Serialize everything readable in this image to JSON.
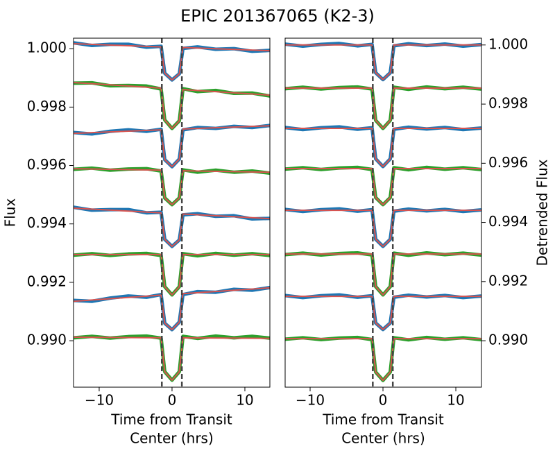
{
  "title": "EPIC 201367065 (K2-3)",
  "chart_data": [
    {
      "type": "line",
      "ylabel": "Flux",
      "xlabel": [
        "Time from Transit",
        "Center (hrs)"
      ],
      "yaxis_side": "left",
      "xlim": [
        -13.52,
        13.43
      ],
      "ylim": [
        0.98841,
        1.00036
      ],
      "xticks": [
        {
          "value": -10,
          "label": "−10"
        },
        0,
        10
      ],
      "yticks": [
        {
          "value": 0.99,
          "label": "0.990"
        },
        0.992,
        0.994,
        0.996,
        0.998,
        {
          "value": 1.0,
          "label": "1.000"
        }
      ],
      "vlines": [
        -1.4,
        1.35
      ],
      "vline_color": "#444444",
      "x": [
        -13.5,
        -11,
        -8.5,
        -6,
        -3.5,
        -1.5,
        -1,
        0,
        1,
        1.5,
        3.5,
        6,
        8.5,
        11,
        13.4
      ],
      "series": [
        {
          "color": "#1f77b4",
          "values": [
            1.0002,
            1.00011,
            1.00015,
            1.00015,
            1.00005,
            1.00008,
            0.99916,
            0.99893,
            0.99914,
            1.00001,
            1.00006,
            0.99998,
            1.0,
            0.99991,
            0.99994
          ]
        },
        {
          "color": "#d9534f",
          "x": [
            -13.5,
            -1.5,
            -1,
            0,
            1,
            1.5,
            13.4
          ],
          "values": [
            1.00017,
            1.00006,
            0.99916,
            0.99893,
            0.99914,
            1.00004,
            0.99993
          ]
        },
        {
          "color": "#2ca02c",
          "values": [
            0.99882,
            0.99883,
            0.99873,
            0.99874,
            0.99872,
            0.99862,
            0.99756,
            0.99727,
            0.99753,
            0.99863,
            0.99853,
            0.99857,
            0.99847,
            0.99848,
            0.99838
          ]
        },
        {
          "color": "#d9534f",
          "x": [
            -13.5,
            -1.5,
            -1,
            0,
            1,
            1.5,
            13.4
          ],
          "values": [
            0.99884,
            0.99865,
            0.99756,
            0.99727,
            0.99753,
            0.9986,
            0.99841
          ]
        },
        {
          "color": "#1f77b4",
          "values": [
            0.99713,
            0.99708,
            0.99717,
            0.99722,
            0.99717,
            0.99724,
            0.9962,
            0.99596,
            0.99622,
            0.99722,
            0.9973,
            0.99727,
            0.99734,
            0.9973,
            0.99737
          ]
        },
        {
          "color": "#d9534f",
          "x": [
            -13.5,
            -1.5,
            -1,
            0,
            1,
            1.5,
            13.4
          ],
          "values": [
            0.9971,
            0.99722,
            0.9962,
            0.99596,
            0.99622,
            0.99725,
            0.99736
          ]
        },
        {
          "color": "#2ca02c",
          "values": [
            0.99587,
            0.99591,
            0.99584,
            0.99588,
            0.99589,
            0.99581,
            0.99489,
            0.99466,
            0.99489,
            0.99585,
            0.99577,
            0.99584,
            0.99577,
            0.99581,
            0.99574
          ]
        },
        {
          "color": "#d9534f",
          "x": [
            -13.5,
            -1.5,
            -1,
            0,
            1,
            1.5,
            13.4
          ],
          "values": [
            0.99589,
            0.99584,
            0.99489,
            0.99466,
            0.99489,
            0.99582,
            0.99577
          ]
        },
        {
          "color": "#1f77b4",
          "values": [
            0.99457,
            0.99447,
            0.99449,
            0.99449,
            0.99438,
            0.9944,
            0.99347,
            0.99323,
            0.99345,
            0.99431,
            0.99435,
            0.99426,
            0.99428,
            0.99417,
            0.99419
          ]
        },
        {
          "color": "#d9534f",
          "x": [
            -13.5,
            -1.5,
            -1,
            0,
            1,
            1.5,
            13.4
          ],
          "values": [
            0.99454,
            0.99438,
            0.99347,
            0.99323,
            0.99345,
            0.99434,
            0.99418
          ]
        },
        {
          "color": "#2ca02c",
          "values": [
            0.99293,
            0.99298,
            0.99292,
            0.99297,
            0.99299,
            0.99292,
            0.99185,
            0.99157,
            0.99185,
            0.99298,
            0.99291,
            0.99299,
            0.99293,
            0.99298,
            0.99292
          ]
        },
        {
          "color": "#d9534f",
          "x": [
            -13.5,
            -1.5,
            -1,
            0,
            1,
            1.5,
            13.4
          ],
          "values": [
            0.99295,
            0.99295,
            0.99185,
            0.99157,
            0.99185,
            0.99295,
            0.99295
          ]
        },
        {
          "color": "#1f77b4",
          "values": [
            0.99138,
            0.99135,
            0.99146,
            0.99153,
            0.99149,
            0.99158,
            0.9906,
            0.99038,
            0.99064,
            0.99158,
            0.99168,
            0.99166,
            0.99176,
            0.99173,
            0.99182
          ]
        },
        {
          "color": "#d9534f",
          "x": [
            -13.5,
            -1.5,
            -1,
            0,
            1,
            1.5,
            13.4
          ],
          "values": [
            0.99135,
            0.99156,
            0.9906,
            0.99038,
            0.99064,
            0.99161,
            0.99181
          ]
        },
        {
          "color": "#2ca02c",
          "values": [
            0.9901,
            0.99015,
            0.99009,
            0.99014,
            0.99016,
            0.99009,
            0.98894,
            0.98865,
            0.98894,
            0.99015,
            0.99008,
            0.99016,
            0.9901,
            0.99015,
            0.99009
          ]
        },
        {
          "color": "#d9534f",
          "x": [
            -13.5,
            -1.5,
            -1,
            0,
            1,
            1.5,
            13.4
          ],
          "values": [
            0.99012,
            0.9901,
            0.98894,
            0.98865,
            0.98894,
            0.9901,
            0.99008
          ]
        }
      ]
    },
    {
      "type": "line",
      "ylabel": "Detrended Flux",
      "xlabel": [
        "Time from Transit",
        "Center (hrs)"
      ],
      "yaxis_side": "right",
      "xlim": [
        -13.43,
        13.52
      ],
      "ylim": [
        0.98843,
        1.00023
      ],
      "xticks": [
        {
          "value": -10,
          "label": "−10"
        },
        0,
        10
      ],
      "yticks": [
        {
          "value": 0.99,
          "label": "0.990"
        },
        0.992,
        0.994,
        0.996,
        0.998,
        {
          "value": 1.0,
          "label": "1.000"
        }
      ],
      "vlines": [
        -1.4,
        1.35
      ],
      "vline_color": "#444444",
      "x": [
        -13.5,
        -11,
        -8.5,
        -6,
        -3.5,
        -1.5,
        -1,
        0,
        1,
        1.5,
        3.5,
        6,
        8.5,
        11,
        13.4
      ],
      "series": [
        {
          "color": "#1f77b4",
          "values": [
            1.00003,
            0.99996,
            1.00002,
            1.00005,
            0.99997,
            1.00002,
            0.99906,
            0.99883,
            0.99906,
            0.99997,
            1.00004,
            0.99998,
            1.00003,
            0.99996,
            1.00001
          ]
        },
        {
          "color": "#d9534f",
          "x": [
            -13.5,
            -1.5,
            -1,
            0,
            1,
            1.5,
            13.4
          ],
          "values": [
            1.0,
            1.0,
            0.99906,
            0.99883,
            0.99906,
            1.0,
            1.0
          ]
        },
        {
          "color": "#2ca02c",
          "values": [
            0.99852,
            0.99857,
            0.99851,
            0.99856,
            0.99858,
            0.99851,
            0.99745,
            0.99718,
            0.99745,
            0.99857,
            0.9985,
            0.99858,
            0.99852,
            0.99857,
            0.99851
          ]
        },
        {
          "color": "#d9534f",
          "x": [
            -13.5,
            -1.5,
            -1,
            0,
            1,
            1.5,
            13.4
          ],
          "values": [
            0.99854,
            0.99854,
            0.99745,
            0.99718,
            0.99745,
            0.99854,
            0.99854
          ]
        },
        {
          "color": "#1f77b4",
          "values": [
            0.99721,
            0.99714,
            0.9972,
            0.99723,
            0.99715,
            0.9972,
            0.99615,
            0.99589,
            0.99615,
            0.99715,
            0.99722,
            0.99716,
            0.99721,
            0.99714,
            0.99719
          ]
        },
        {
          "color": "#d9534f",
          "x": [
            -13.5,
            -1.5,
            -1,
            0,
            1,
            1.5,
            13.4
          ],
          "values": [
            0.99718,
            0.99718,
            0.99615,
            0.99589,
            0.99615,
            0.99718,
            0.99718
          ]
        },
        {
          "color": "#2ca02c",
          "values": [
            0.9958,
            0.99585,
            0.99579,
            0.99584,
            0.99586,
            0.99579,
            0.99484,
            0.9946,
            0.99484,
            0.99585,
            0.99578,
            0.99586,
            0.9958,
            0.99585,
            0.99579
          ]
        },
        {
          "color": "#d9534f",
          "x": [
            -13.5,
            -1.5,
            -1,
            0,
            1,
            1.5,
            13.4
          ],
          "values": [
            0.99582,
            0.99582,
            0.99484,
            0.9946,
            0.99484,
            0.99582,
            0.99582
          ]
        },
        {
          "color": "#1f77b4",
          "values": [
            0.99444,
            0.99437,
            0.99443,
            0.99446,
            0.99438,
            0.99443,
            0.99343,
            0.99319,
            0.99343,
            0.99438,
            0.99445,
            0.99439,
            0.99444,
            0.99437,
            0.99442
          ]
        },
        {
          "color": "#d9534f",
          "x": [
            -13.5,
            -1.5,
            -1,
            0,
            1,
            1.5,
            13.4
          ],
          "values": [
            0.99441,
            0.99441,
            0.99343,
            0.99319,
            0.99343,
            0.99441,
            0.99441
          ]
        },
        {
          "color": "#2ca02c",
          "values": [
            0.99291,
            0.99296,
            0.9929,
            0.99295,
            0.99297,
            0.9929,
            0.99183,
            0.99155,
            0.99183,
            0.99296,
            0.99289,
            0.99297,
            0.99291,
            0.99296,
            0.9929
          ]
        },
        {
          "color": "#d9534f",
          "x": [
            -13.5,
            -1.5,
            -1,
            0,
            1,
            1.5,
            13.4
          ],
          "values": [
            0.99293,
            0.99293,
            0.99183,
            0.99155,
            0.99183,
            0.99293,
            0.99293
          ]
        },
        {
          "color": "#1f77b4",
          "values": [
            0.99153,
            0.99146,
            0.99152,
            0.99155,
            0.99147,
            0.99152,
            0.9906,
            0.99038,
            0.9906,
            0.99147,
            0.99154,
            0.99148,
            0.99153,
            0.99146,
            0.99151
          ]
        },
        {
          "color": "#d9534f",
          "x": [
            -13.5,
            -1.5,
            -1,
            0,
            1,
            1.5,
            13.4
          ],
          "values": [
            0.9915,
            0.9915,
            0.9906,
            0.99038,
            0.9906,
            0.9915,
            0.9915
          ]
        },
        {
          "color": "#2ca02c",
          "values": [
            0.99005,
            0.9901,
            0.99004,
            0.99009,
            0.99011,
            0.99004,
            0.98894,
            0.98866,
            0.98894,
            0.9901,
            0.99003,
            0.99011,
            0.99005,
            0.9901,
            0.99004
          ]
        },
        {
          "color": "#d9534f",
          "x": [
            -13.5,
            -1.5,
            -1,
            0,
            1,
            1.5,
            13.4
          ],
          "values": [
            0.99007,
            0.99007,
            0.98894,
            0.98866,
            0.98894,
            0.99007,
            0.99007
          ]
        }
      ]
    }
  ]
}
